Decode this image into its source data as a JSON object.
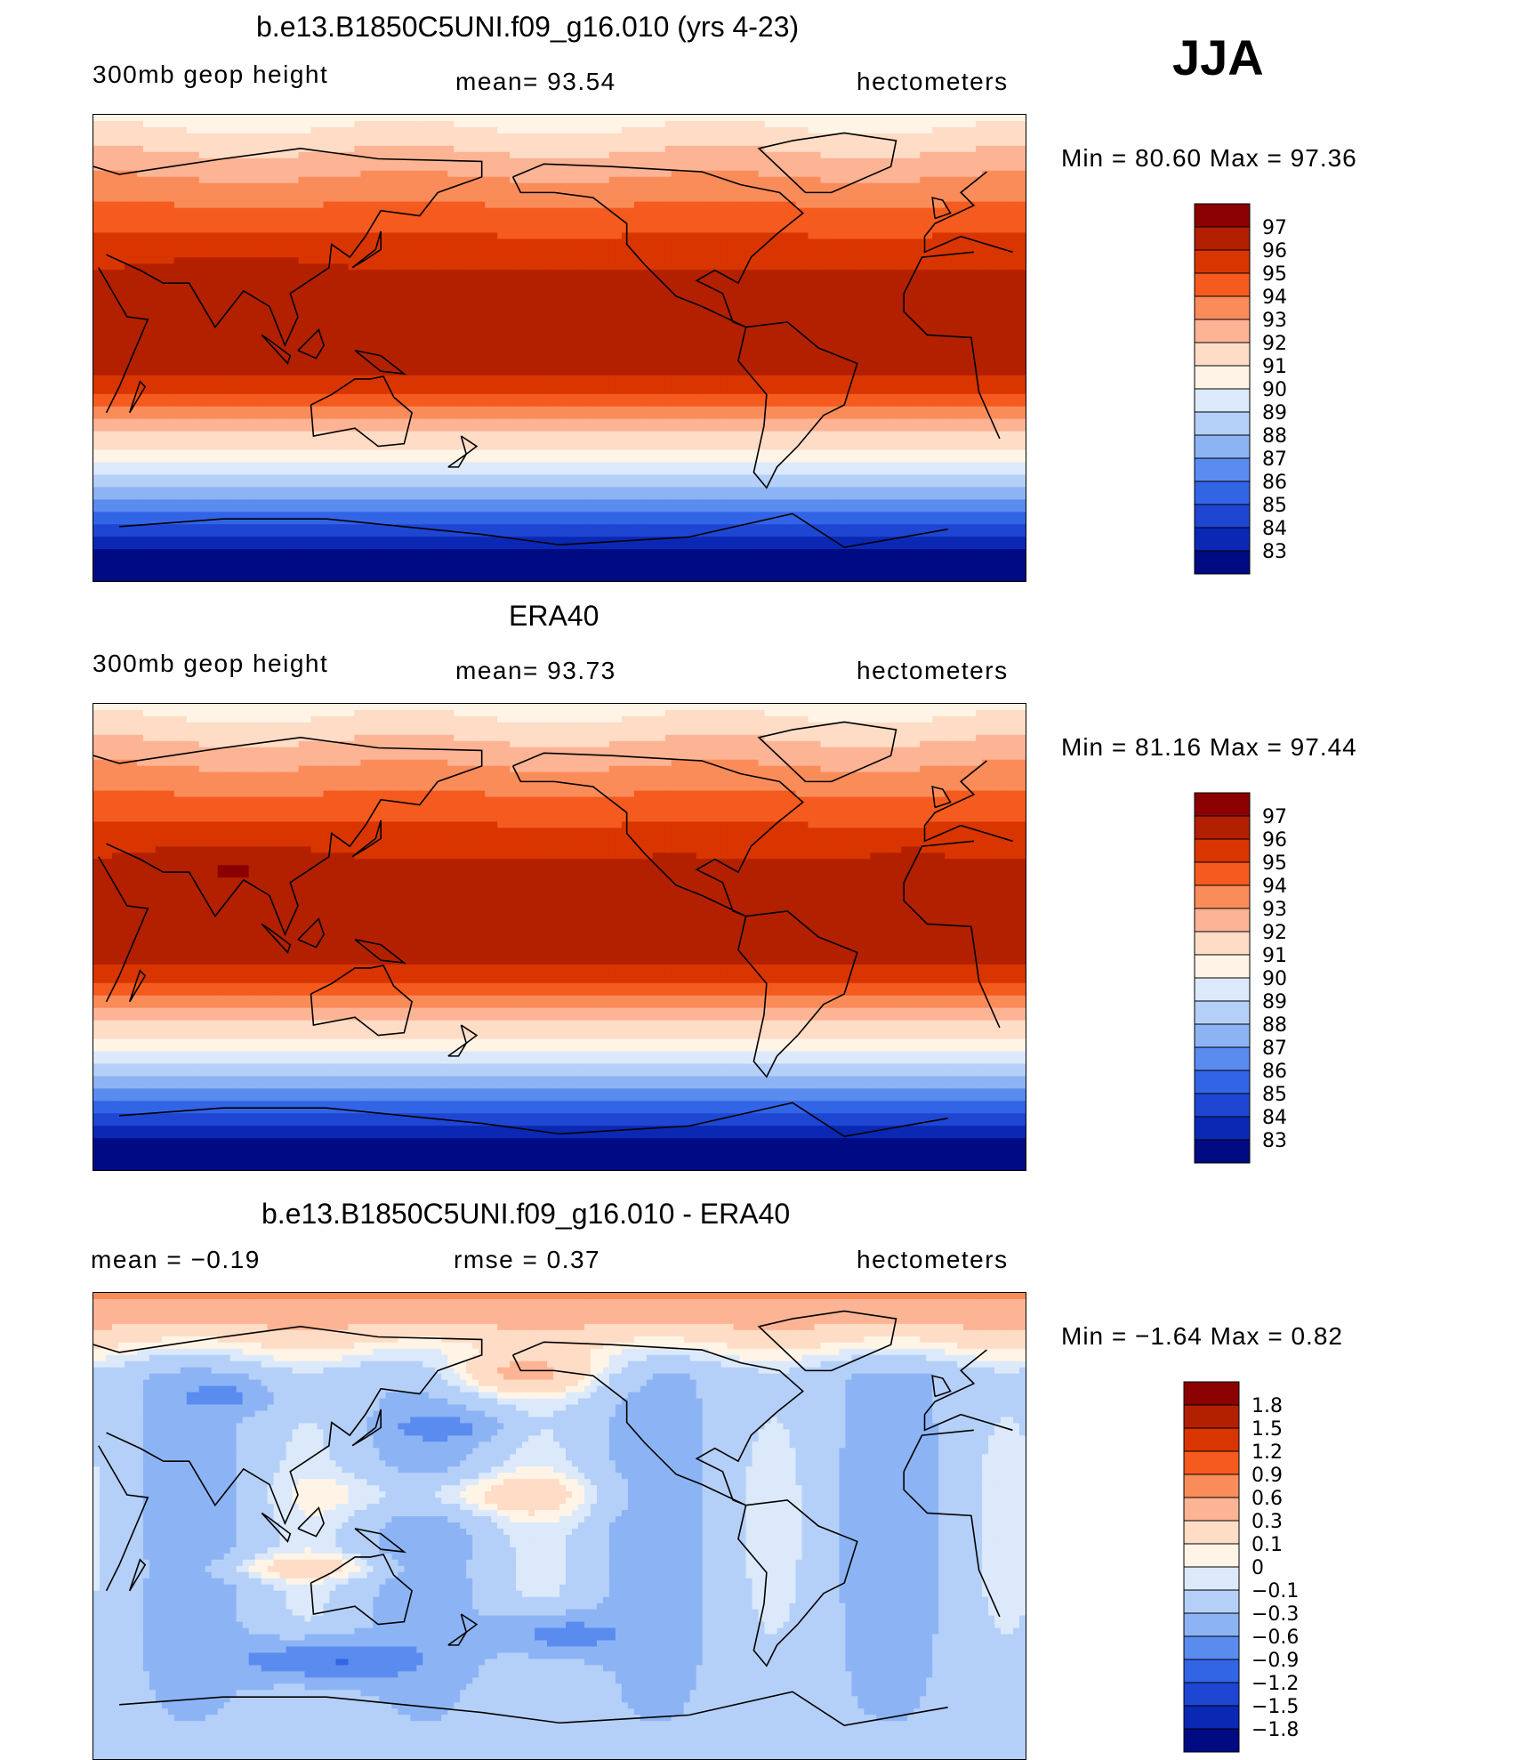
{
  "season": "JJA",
  "panels": [
    {
      "title": "b.e13.B1850C5UNI.f09_g16.010 (yrs 4-23)",
      "left": "300mb  geop  height",
      "middle": "mean=   93.54",
      "right": "hectometers",
      "minmax": "Min =   80.60  Max =   97.36",
      "levels": [
        "97",
        "96",
        "95",
        "94",
        "93",
        "92",
        "91",
        "90",
        "89",
        "88",
        "87",
        "86",
        "85",
        "84",
        "83"
      ],
      "colors": [
        "#8b0000",
        "#b22000",
        "#d93500",
        "#f55a1e",
        "#fa8c5a",
        "#fcb494",
        "#fedcc6",
        "#fff4e6",
        "#dce9fa",
        "#b5d0f8",
        "#8cb4f5",
        "#5a8cf0",
        "#3264e6",
        "#1e46d2",
        "#0a28b4",
        "#000a82"
      ],
      "field": "base"
    },
    {
      "title": "ERA40",
      "left": "300mb  geop  height",
      "middle": "mean=   93.73",
      "right": "hectometers",
      "minmax": "Min =   81.16  Max =   97.44",
      "levels": [
        "97",
        "96",
        "95",
        "94",
        "93",
        "92",
        "91",
        "90",
        "89",
        "88",
        "87",
        "86",
        "85",
        "84",
        "83"
      ],
      "colors": [
        "#8b0000",
        "#b22000",
        "#d93500",
        "#f55a1e",
        "#fa8c5a",
        "#fcb494",
        "#fedcc6",
        "#fff4e6",
        "#dce9fa",
        "#b5d0f8",
        "#8cb4f5",
        "#5a8cf0",
        "#3264e6",
        "#1e46d2",
        "#0a28b4",
        "#000a82"
      ],
      "field": "obs"
    },
    {
      "title": "b.e13.B1850C5UNI.f09_g16.010 - ERA40",
      "left": "mean  =    −0.19",
      "middle": "rmse  =     0.37",
      "right": "hectometers",
      "minmax": "Min =   −1.64  Max =      0.82",
      "levels": [
        "1.8",
        "1.5",
        "1.2",
        "0.9",
        "0.6",
        "0.3",
        "0.1",
        "0",
        "−0.1",
        "−0.3",
        "−0.6",
        "−0.9",
        "−1.2",
        "−1.5",
        "−1.8"
      ],
      "colors": [
        "#8b0000",
        "#b22000",
        "#d93500",
        "#f55a1e",
        "#fa8c5a",
        "#fcb494",
        "#fedcc6",
        "#fff4e6",
        "#dce9fa",
        "#b5d0f8",
        "#8cb4f5",
        "#5a8cf0",
        "#3264e6",
        "#1e46d2",
        "#0a28b4",
        "#000a82"
      ],
      "field": "diff"
    }
  ]
}
